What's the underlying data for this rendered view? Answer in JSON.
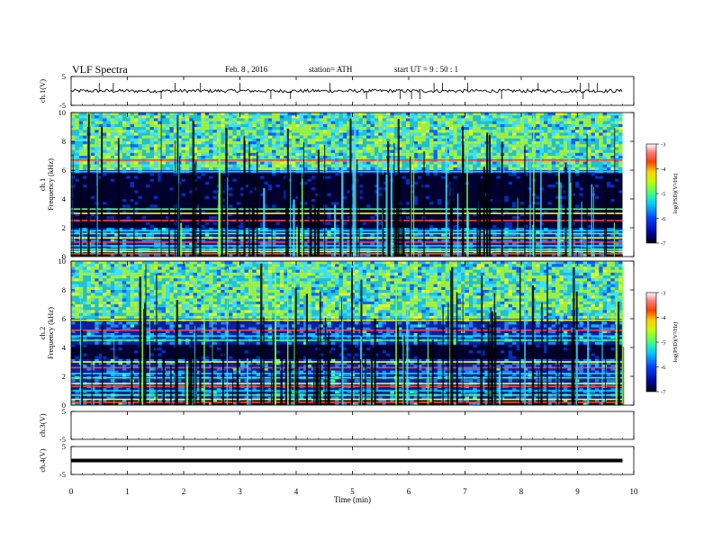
{
  "header": {
    "title": "VLF  Spectra",
    "date": "Feb. 8  , 2016",
    "station": "station= ATH",
    "start_ut": "start  UT  =    9  : 50 : 1"
  },
  "chart_data": [
    {
      "type": "line",
      "name": "ch1-voltage",
      "ylabel": "ch.1(V)",
      "ylim": [
        -5,
        5
      ],
      "y_ticks": [
        "5",
        "-5"
      ],
      "xlim": [
        0,
        10
      ],
      "x_end_min": 9.8,
      "mean_level": 0.0,
      "spikes_min": [
        0.5,
        0.75,
        1.6,
        1.85,
        2.3,
        3.0,
        3.55,
        3.9,
        4.6,
        5.25,
        5.85,
        6.05,
        6.2,
        6.45,
        6.6,
        7.05,
        7.65,
        8.3,
        9.05,
        9.1,
        9.2,
        9.35
      ]
    },
    {
      "type": "heatmap",
      "name": "ch1-spectrogram",
      "ylabel": "Frequency  (kHz)",
      "channel_label": "ch.1",
      "xlim": [
        0,
        10
      ],
      "ylim": [
        0,
        10
      ],
      "y_ticks": [
        "0",
        "2",
        "4",
        "6",
        "8",
        "10"
      ],
      "colorbar": {
        "label": "log(PSD)(V²/Hz)",
        "range": [
          -7,
          -3
        ],
        "ticks": [
          "-3",
          "-4",
          "-5",
          "-6",
          "-7"
        ]
      },
      "lines_khz": [
        0.2,
        0.35,
        0.5,
        0.75,
        1.0,
        1.3,
        1.6,
        1.8,
        2.5,
        3.0,
        3.3,
        5.9,
        6.7
      ],
      "quiet_band_khz": [
        2,
        5.8
      ],
      "active_band_khz": [
        6,
        10
      ]
    },
    {
      "type": "heatmap",
      "name": "ch2-spectrogram",
      "ylabel": "Frequency  (kHz)",
      "channel_label": "ch.2",
      "xlim": [
        0,
        10
      ],
      "ylim": [
        0,
        10
      ],
      "y_ticks": [
        "0",
        "2",
        "4",
        "6",
        "8",
        "10"
      ],
      "colorbar": {
        "label": "log(PSD)(V²/Hz)",
        "range": [
          -7,
          -3
        ],
        "ticks": [
          "-3",
          "-4",
          "-5",
          "-6",
          "-7"
        ]
      },
      "lines_khz": [
        0.2,
        0.4,
        0.7,
        1.0,
        1.3,
        1.5,
        1.9,
        2.2,
        2.6,
        3.0,
        4.5,
        4.8,
        5.2,
        5.9
      ],
      "quiet_band_khz": [
        3.2,
        4.2
      ],
      "active_band_khz": [
        6,
        10
      ]
    },
    {
      "type": "line",
      "name": "ch3-voltage",
      "ylabel": "ch.3(V)",
      "ylim": [
        -5,
        5
      ],
      "y_ticks": [
        "5",
        "-5"
      ],
      "xlim": [
        0,
        10
      ],
      "values": []
    },
    {
      "type": "line",
      "name": "ch4-voltage",
      "ylabel": "ch.4(V)",
      "ylim": [
        -5,
        5
      ],
      "y_ticks": [
        "5",
        "-5"
      ],
      "xlim": [
        0,
        10
      ],
      "x_end_min": 9.8,
      "mean_level": 0.0
    }
  ],
  "x_axis": {
    "label": "Time  (min)",
    "ticks": [
      "0",
      "1",
      "2",
      "3",
      "4",
      "5",
      "6",
      "7",
      "8",
      "9",
      "10"
    ]
  },
  "colors": {
    "colorscale": [
      "#000000",
      "#0000b0",
      "#1040ff",
      "#00c0ff",
      "#40f0a0",
      "#a0ff20",
      "#ffff00",
      "#ff8000",
      "#ff0000",
      "#ffffff"
    ]
  }
}
